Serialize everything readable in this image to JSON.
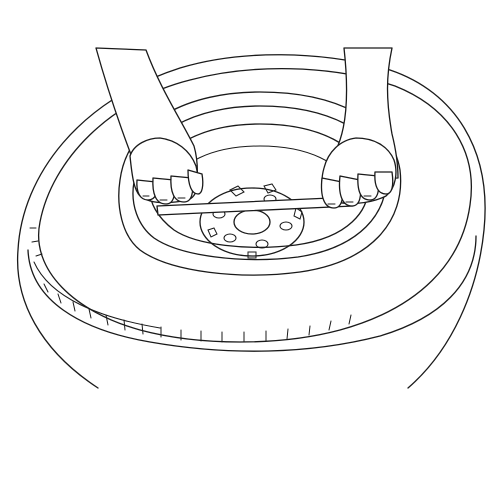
{
  "figure": {
    "subject": "spare-tire-well-measurement",
    "components": [
      "tire",
      "wheel-rim",
      "wheel-hub",
      "straightedge",
      "left-hand",
      "right-hand"
    ],
    "colors": {
      "line": "#1a1a1a",
      "background": "#ffffff"
    }
  }
}
